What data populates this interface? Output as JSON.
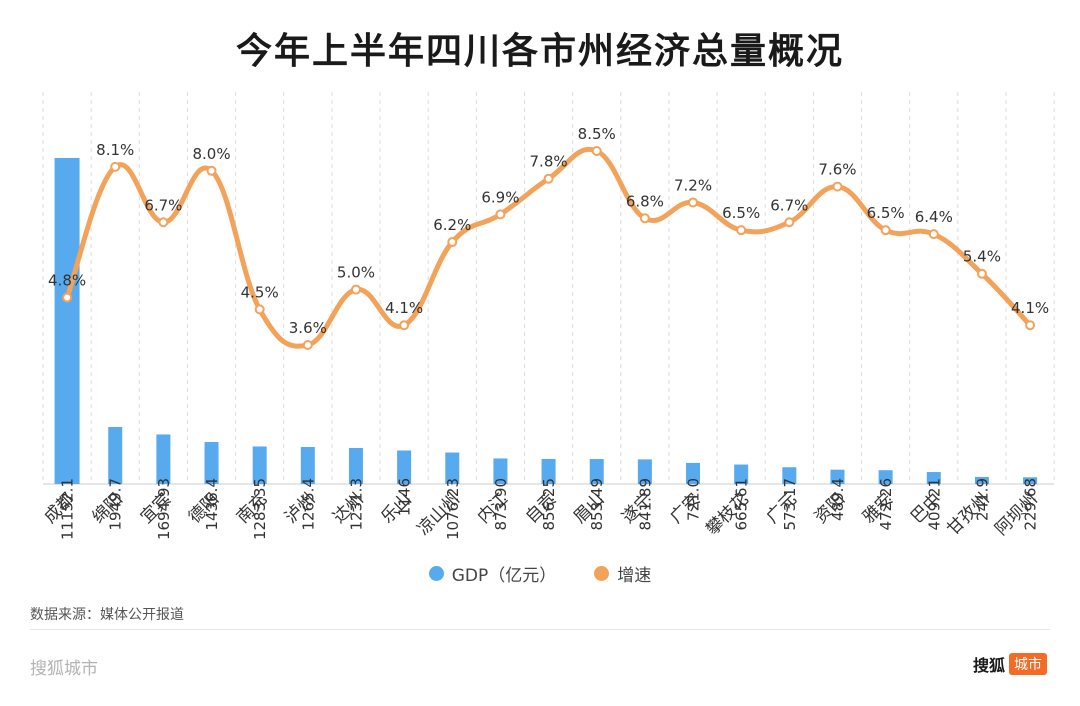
{
  "page": {
    "source_text": "数据来源：媒体公开报道",
    "footer_left": "搜狐城市",
    "footer_brand": "搜狐",
    "footer_badge": "城市"
  },
  "colors": {
    "bar": "#58aaef",
    "line": "#f3a25a",
    "point_fill": "#ffffff",
    "grid": "#dcdcdc"
  },
  "chart_data": {
    "type": "bar+line",
    "title": "今年上半年四川各市州经济总量概况",
    "categories": [
      "成都",
      "绵阳",
      "宜宾",
      "德阳",
      "南充",
      "泸州",
      "达州",
      "乐山",
      "凉山州",
      "内江",
      "自贡",
      "眉山",
      "遂宁",
      "广安",
      "攀枝花",
      "广元",
      "资阳",
      "雅安",
      "巴中",
      "甘孜州",
      "阿坝州"
    ],
    "legend": [
      "GDP（亿元）",
      "增速"
    ],
    "series": [
      {
        "name": "GDP（亿元）",
        "type": "bar",
        "values": [
          11152.1,
          1949.7,
          1694.93,
          1436.4,
          1283.35,
          1265.4,
          1231.3,
          1146,
          1076.23,
          873.9,
          856.25,
          853.49,
          841.89,
          721.0,
          665.61,
          573.17,
          489.4,
          472.26,
          409.21,
          241.9,
          229.68
        ],
        "labels": [
          "11152.1",
          "1949.7",
          "1694.93",
          "1436.4",
          "1283.35",
          "1265.4",
          "1231.3",
          "1146",
          "1076.23",
          "873.90",
          "856.25",
          "853.49",
          "841.89",
          "721.0",
          "665.61",
          "573.17",
          "489.4",
          "472.26",
          "409.21",
          "241.9",
          "229.68"
        ]
      },
      {
        "name": "增速",
        "type": "line",
        "values": [
          4.8,
          8.1,
          6.7,
          8.0,
          4.5,
          3.6,
          5.0,
          4.1,
          6.2,
          6.9,
          7.8,
          8.5,
          6.8,
          7.2,
          6.5,
          6.7,
          7.6,
          6.5,
          6.4,
          5.4,
          4.1
        ],
        "labels": [
          "4.8%",
          "8.1%",
          "6.7%",
          "8.0%",
          "4.5%",
          "3.6%",
          "5.0%",
          "4.1%",
          "6.2%",
          "6.9%",
          "7.8%",
          "8.5%",
          "6.8%",
          "7.2%",
          "6.5%",
          "6.7%",
          "7.6%",
          "6.5%",
          "6.4%",
          "5.4%",
          "4.1%"
        ]
      }
    ],
    "gdp_axis": [
      0,
      11152.1
    ],
    "growth_axis": [
      3.6,
      8.5
    ]
  }
}
